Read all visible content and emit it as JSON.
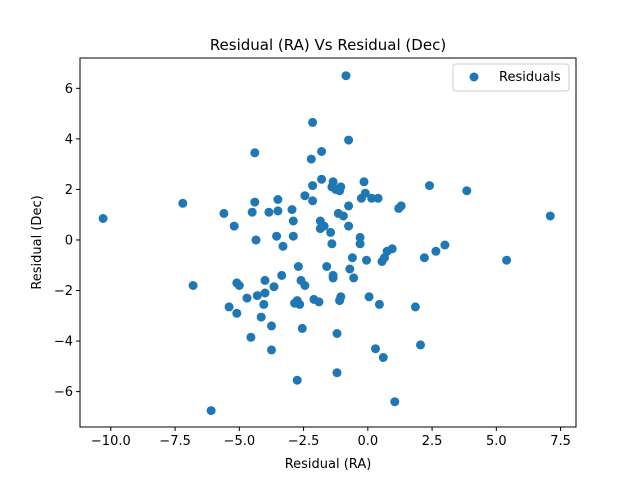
{
  "chart_data": {
    "type": "scatter",
    "title": "Residual (RA) Vs Residual (Dec)",
    "xlabel": "Residual (RA)",
    "ylabel": "Residual (Dec)",
    "xlim": [
      -11.2,
      8.1
    ],
    "ylim": [
      -7.4,
      7.2
    ],
    "xticks": [
      -10.0,
      -7.5,
      -5.0,
      -2.5,
      0.0,
      2.5,
      5.0,
      7.5
    ],
    "xtick_labels": [
      "−10.0",
      "−7.5",
      "−5.0",
      "−2.5",
      "0.0",
      "2.5",
      "5.0",
      "7.5"
    ],
    "yticks": [
      -6,
      -4,
      -2,
      0,
      2,
      4,
      6
    ],
    "ytick_labels": [
      "−6",
      "−4",
      "−2",
      "0",
      "2",
      "4",
      "6"
    ],
    "grid": false,
    "legend_position": "upper right",
    "color": "#1f77b4",
    "series": [
      {
        "name": "Residuals",
        "points": [
          [
            -10.3,
            0.85
          ],
          [
            -7.2,
            1.45
          ],
          [
            -6.8,
            -1.8
          ],
          [
            -6.1,
            -6.75
          ],
          [
            -5.6,
            1.05
          ],
          [
            -5.4,
            -2.65
          ],
          [
            -5.2,
            0.55
          ],
          [
            -5.1,
            -1.7
          ],
          [
            -5.1,
            -2.9
          ],
          [
            -5.0,
            -1.8
          ],
          [
            -4.7,
            -2.3
          ],
          [
            -4.55,
            -3.85
          ],
          [
            -4.5,
            1.1
          ],
          [
            -4.4,
            3.45
          ],
          [
            -4.4,
            1.5
          ],
          [
            -4.35,
            0.0
          ],
          [
            -4.3,
            -2.2
          ],
          [
            -4.15,
            -3.05
          ],
          [
            -4.05,
            -2.55
          ],
          [
            -4.0,
            -1.6
          ],
          [
            -4.0,
            -2.1
          ],
          [
            -3.85,
            1.1
          ],
          [
            -3.75,
            -3.4
          ],
          [
            -3.75,
            -4.35
          ],
          [
            -3.65,
            -1.85
          ],
          [
            -3.55,
            0.15
          ],
          [
            -3.5,
            1.6
          ],
          [
            -3.5,
            1.15
          ],
          [
            -3.35,
            -1.4
          ],
          [
            -3.3,
            -0.25
          ],
          [
            -2.95,
            1.2
          ],
          [
            -2.9,
            0.75
          ],
          [
            -2.9,
            0.15
          ],
          [
            -2.85,
            -2.5
          ],
          [
            -2.75,
            -2.4
          ],
          [
            -2.75,
            -5.55
          ],
          [
            -2.7,
            -1.05
          ],
          [
            -2.65,
            -2.55
          ],
          [
            -2.6,
            -1.6
          ],
          [
            -2.55,
            -3.5
          ],
          [
            -2.45,
            1.75
          ],
          [
            -2.45,
            -1.8
          ],
          [
            -2.2,
            3.2
          ],
          [
            -2.15,
            4.65
          ],
          [
            -2.15,
            2.15
          ],
          [
            -2.15,
            1.55
          ],
          [
            -2.1,
            -2.35
          ],
          [
            -1.9,
            -2.45
          ],
          [
            -1.85,
            0.45
          ],
          [
            -1.85,
            0.75
          ],
          [
            -1.8,
            3.5
          ],
          [
            -1.8,
            2.4
          ],
          [
            -1.7,
            0.55
          ],
          [
            -1.6,
            -1.05
          ],
          [
            -1.45,
            0.3
          ],
          [
            -1.4,
            -0.15
          ],
          [
            -1.4,
            2.1
          ],
          [
            -1.35,
            -1.4
          ],
          [
            -1.35,
            2.3
          ],
          [
            -1.35,
            -1.5
          ],
          [
            -1.25,
            2.0
          ],
          [
            -1.2,
            -5.25
          ],
          [
            -1.2,
            -3.7
          ],
          [
            -1.15,
            1.05
          ],
          [
            -1.1,
            1.95
          ],
          [
            -1.1,
            -2.4
          ],
          [
            -1.05,
            2.1
          ],
          [
            -1.05,
            -2.25
          ],
          [
            -0.95,
            0.95
          ],
          [
            -0.85,
            6.5
          ],
          [
            -0.75,
            0.55
          ],
          [
            -0.75,
            3.95
          ],
          [
            -0.75,
            1.35
          ],
          [
            -0.7,
            -1.15
          ],
          [
            -0.6,
            -0.7
          ],
          [
            -0.55,
            -1.5
          ],
          [
            -0.3,
            0.1
          ],
          [
            -0.3,
            -0.15
          ],
          [
            -0.25,
            1.65
          ],
          [
            -0.15,
            2.3
          ],
          [
            -0.1,
            1.85
          ],
          [
            -0.05,
            -0.8
          ],
          [
            0.05,
            -2.25
          ],
          [
            0.15,
            1.65
          ],
          [
            0.3,
            -4.3
          ],
          [
            0.4,
            1.65
          ],
          [
            0.45,
            -2.55
          ],
          [
            0.55,
            -0.85
          ],
          [
            0.6,
            -4.65
          ],
          [
            0.65,
            -0.7
          ],
          [
            0.75,
            -0.45
          ],
          [
            0.95,
            -0.35
          ],
          [
            1.05,
            -6.4
          ],
          [
            1.2,
            1.25
          ],
          [
            1.3,
            1.35
          ],
          [
            1.85,
            -2.65
          ],
          [
            2.05,
            -4.15
          ],
          [
            2.2,
            -0.7
          ],
          [
            2.4,
            2.15
          ],
          [
            2.65,
            -0.45
          ],
          [
            3.0,
            -0.2
          ],
          [
            3.85,
            1.95
          ],
          [
            5.4,
            -0.8
          ],
          [
            7.1,
            0.95
          ]
        ]
      }
    ]
  }
}
